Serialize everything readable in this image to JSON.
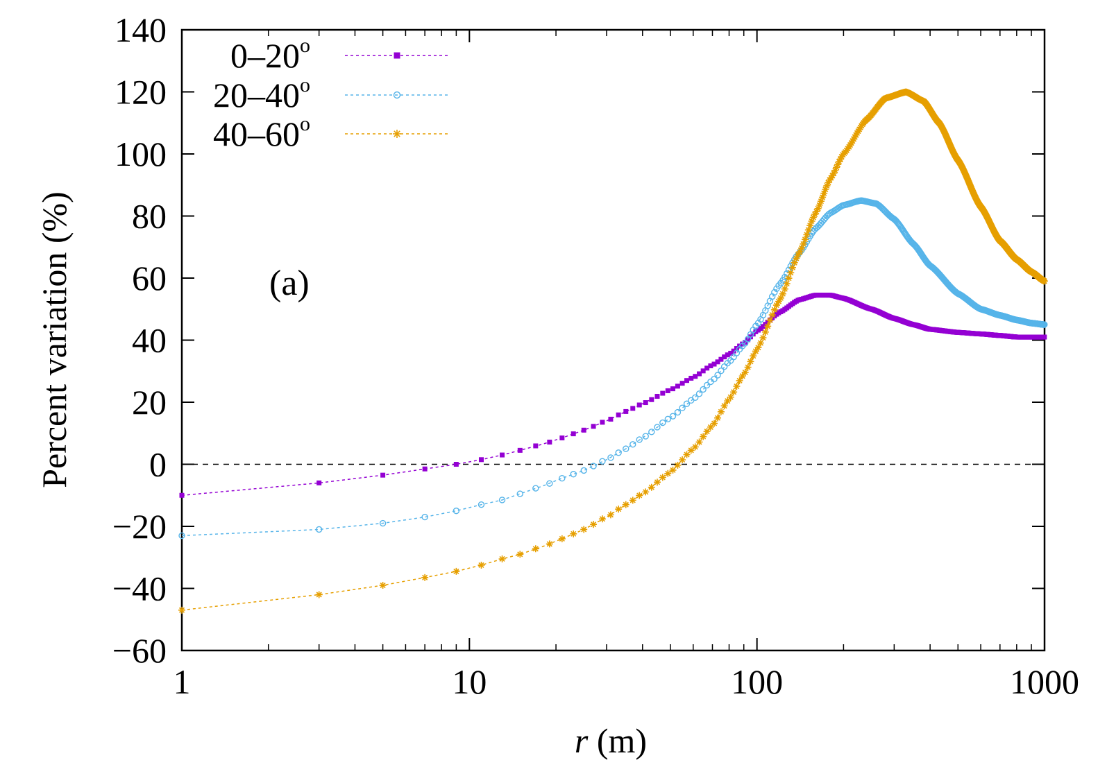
{
  "chart_data": {
    "type": "line",
    "title": "",
    "annotation": "(a)",
    "xlabel_italic": "r",
    "xlabel_rest": " (m)",
    "ylabel": "Percent variation (%)",
    "xscale": "log",
    "xlim": [
      1,
      1000
    ],
    "ylim": [
      -60,
      140
    ],
    "xticks": [
      1,
      10,
      100,
      1000
    ],
    "xtick_labels": [
      "1",
      "10",
      "100",
      "1000"
    ],
    "yticks": [
      -60,
      -40,
      -20,
      0,
      20,
      40,
      60,
      80,
      100,
      120,
      140
    ],
    "ytick_labels": [
      "−60",
      "−40",
      "−20",
      "0",
      "20",
      "40",
      "60",
      "80",
      "100",
      "120",
      "140"
    ],
    "reference_line": 0,
    "legend_position": "top-left",
    "legend_degree_symbol": "o",
    "series": [
      {
        "name": "0–20",
        "color": "#9400d3",
        "marker": "filled-square",
        "x": [
          1,
          3,
          5,
          7,
          9,
          11,
          13,
          15,
          18,
          21,
          25,
          30,
          35,
          40,
          50,
          60,
          70,
          80,
          90,
          100,
          120,
          140,
          160,
          180,
          200,
          250,
          300,
          350,
          400,
          500,
          600,
          700,
          800,
          900,
          1000
        ],
        "y": [
          -10,
          -6,
          -3.5,
          -1.5,
          0,
          1.5,
          3,
          4.5,
          6.5,
          8.5,
          11,
          14,
          17,
          19.5,
          24,
          28,
          32,
          35.5,
          39,
          43,
          49,
          53,
          54.5,
          54.5,
          53.5,
          50,
          47,
          45,
          43.5,
          42.5,
          42,
          41.5,
          41,
          41,
          41
        ]
      },
      {
        "name": "20–40",
        "color": "#56b4e9",
        "marker": "open-circle",
        "x": [
          1,
          3,
          5,
          7,
          9,
          11,
          13,
          15,
          18,
          21,
          25,
          30,
          35,
          40,
          50,
          60,
          70,
          80,
          90,
          100,
          120,
          140,
          160,
          180,
          200,
          230,
          260,
          300,
          350,
          400,
          500,
          600,
          700,
          800,
          900,
          1000
        ],
        "y": [
          -23,
          -21,
          -19,
          -17,
          -15,
          -13,
          -11.5,
          -9.5,
          -7,
          -4.5,
          -2,
          1.5,
          5,
          8.5,
          15,
          21,
          27,
          33,
          38.5,
          45,
          58,
          68,
          76,
          81,
          83.5,
          85,
          84,
          79,
          71,
          64,
          55,
          50,
          48,
          46.5,
          45.5,
          45
        ]
      },
      {
        "name": "40–60",
        "color": "#e69f00",
        "marker": "star",
        "x": [
          1,
          3,
          5,
          7,
          9,
          11,
          13,
          15,
          18,
          21,
          25,
          30,
          35,
          40,
          50,
          60,
          70,
          80,
          90,
          100,
          120,
          140,
          160,
          180,
          200,
          240,
          280,
          330,
          380,
          430,
          500,
          600,
          700,
          800,
          900,
          1000
        ],
        "y": [
          -47,
          -42,
          -39,
          -36.5,
          -34.5,
          -32.5,
          -30.5,
          -29,
          -26.5,
          -24,
          -21,
          -17,
          -13,
          -9.5,
          -2.5,
          5,
          12.5,
          21,
          29,
          37,
          53,
          68,
          81,
          92,
          100,
          111,
          118,
          120,
          117,
          110,
          98,
          83,
          72,
          66,
          62,
          59
        ]
      }
    ]
  }
}
